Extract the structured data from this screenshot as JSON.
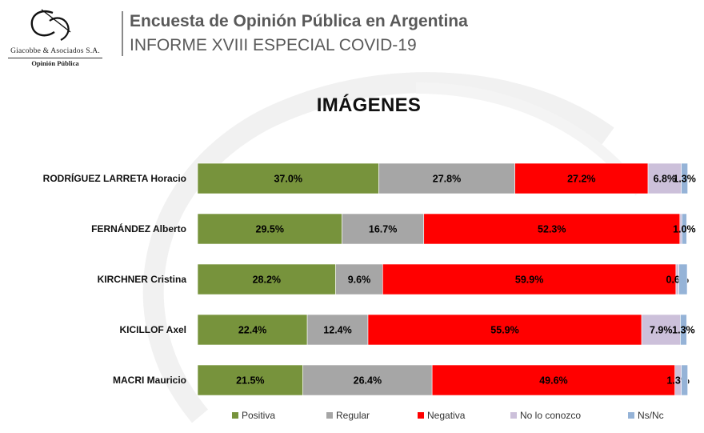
{
  "header": {
    "title": "Encuesta de Opinión Pública en Argentina",
    "subtitle": "INFORME XVIII ESPECIAL COVID-19"
  },
  "logo": {
    "company": "Giacobbe & Asociados S.A.",
    "sub": "Opinión Pública"
  },
  "chart_data": {
    "type": "bar",
    "orientation": "horizontal",
    "stacked": true,
    "title": "IMÁGENES",
    "categories": [
      "RODRÍGUEZ LARRETA Horacio",
      "FERNÁNDEZ Alberto",
      "KIRCHNER Cristina",
      "KICILLOF Axel",
      "MACRI Mauricio"
    ],
    "series": [
      {
        "name": "Positiva",
        "color": "#77933c",
        "values": [
          37.0,
          29.5,
          28.2,
          22.4,
          21.5
        ],
        "labels": [
          "37.0%",
          "29.5%",
          "28.2%",
          "22.4%",
          "21.5%"
        ]
      },
      {
        "name": "Regular",
        "color": "#a6a6a6",
        "values": [
          27.8,
          16.7,
          9.6,
          12.4,
          26.4
        ],
        "labels": [
          "27.8%",
          "16.7%",
          "9.6%",
          "12.4%",
          "26.4%"
        ]
      },
      {
        "name": "Negativa",
        "color": "#ff0000",
        "values": [
          27.2,
          52.3,
          59.9,
          55.9,
          49.6
        ],
        "labels": [
          "27.2%",
          "52.3%",
          "59.9%",
          "55.9%",
          "49.6%"
        ]
      },
      {
        "name": "No lo conozco",
        "color": "#ccc0da",
        "values": [
          6.8,
          0.4,
          0.6,
          7.9,
          1.3
        ],
        "labels": [
          "6.8%",
          "",
          "0.6%",
          "7.9%",
          "1.3%"
        ]
      },
      {
        "name": "Ns/Nc",
        "color": "#95b3d7",
        "values": [
          1.3,
          1.0,
          1.7,
          1.3,
          1.3
        ],
        "labels": [
          "1.3%",
          "1.0%",
          "",
          "1.3%",
          ""
        ]
      }
    ],
    "xlim": [
      0,
      100
    ],
    "legend_position": "bottom",
    "grid": false
  }
}
